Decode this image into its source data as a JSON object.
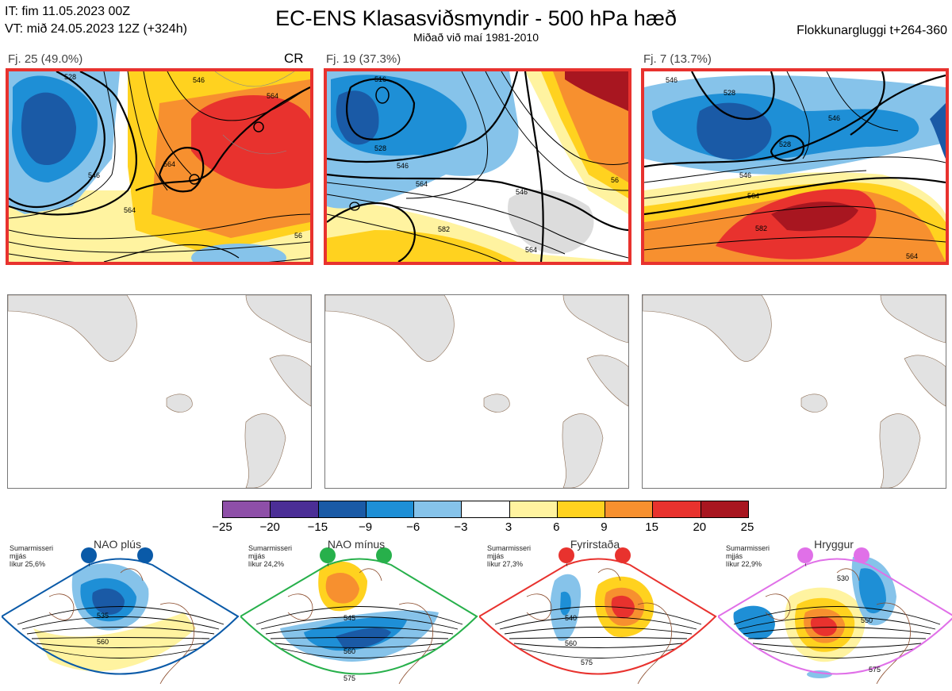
{
  "header": {
    "init_time": "IT: fim 11.05.2023 00Z",
    "valid_time": "VT: mið 24.05.2023 12Z  (+324h)",
    "title": "EC-ENS Klasasviðsmyndir - 500 hPa hæð",
    "subtitle": "Miðað við maí 1981-2010",
    "window": "Flokkunargluggi t+264-360"
  },
  "clusters": [
    {
      "label": "Fj. 25 (49.0%)",
      "tag": "CR",
      "contours": [
        "528",
        "546",
        "564",
        "546",
        "564",
        "564",
        "56"
      ]
    },
    {
      "label": "Fj. 19 (37.3%)",
      "tag": "",
      "contours": [
        "516",
        "528",
        "546",
        "564",
        "546",
        "582",
        "564",
        "56"
      ]
    },
    {
      "label": "Fj. 7 (13.7%)",
      "tag": "",
      "contours": [
        "546",
        "528",
        "546",
        "546",
        "528",
        "564",
        "582",
        "564"
      ]
    }
  ],
  "colorbar": {
    "ticks": [
      "−25",
      "−20",
      "−15",
      "−9",
      "−6",
      "−3",
      "3",
      "6",
      "9",
      "15",
      "20",
      "25"
    ],
    "colors": [
      "#8e4fa8",
      "#4b2e96",
      "#1a5aa6",
      "#1e8fd6",
      "#86c3ea",
      "#ffffff",
      "#fff3a0",
      "#ffd21f",
      "#f7902f",
      "#e8322e",
      "#a81620"
    ]
  },
  "regimes": [
    {
      "name": "NAO plús",
      "season": "Sumarmisseri",
      "word": "mjjás",
      "prob": "líkur 25,6%",
      "color": "#0a5aa8",
      "contours": [
        "535",
        "560"
      ]
    },
    {
      "name": "NAO mínus",
      "season": "Sumarmisseri",
      "word": "mjjás",
      "prob": "líkur 24,2%",
      "color": "#27b04b",
      "contours": [
        "545",
        "560",
        "575"
      ]
    },
    {
      "name": "Fyrirstaða",
      "season": "Sumarmisseri",
      "word": "mjjás",
      "prob": "líkur 27,3%",
      "color": "#e8322e",
      "contours": [
        "540",
        "560",
        "575"
      ]
    },
    {
      "name": "Hryggur",
      "season": "Sumarmisseri",
      "word": "mjjás",
      "prob": "líkur 22,9%",
      "color": "#e070e8",
      "contours": [
        "530",
        "550",
        "575"
      ]
    }
  ]
}
